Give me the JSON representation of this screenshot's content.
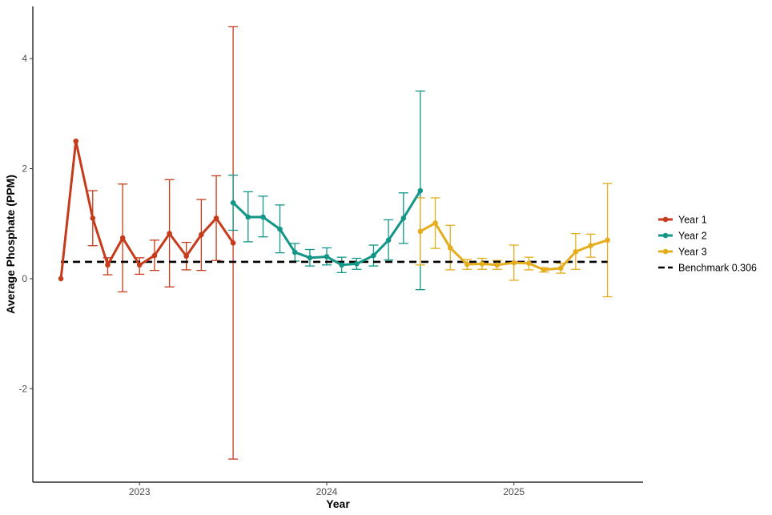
{
  "chart_data": {
    "type": "line",
    "title": "",
    "xlabel": "Year",
    "ylabel": "Average Phosphate (PPM)",
    "ylim": [
      -3.7,
      4.95
    ],
    "xlim": [
      2022.43,
      2025.69
    ],
    "x_ticks": [
      {
        "value": 2023.0,
        "label": "2023"
      },
      {
        "value": 2024.0,
        "label": "2024"
      },
      {
        "value": 2025.0,
        "label": "2025"
      }
    ],
    "y_ticks": [
      {
        "value": -2,
        "label": "-2"
      },
      {
        "value": 0,
        "label": "0"
      },
      {
        "value": 2,
        "label": "2"
      },
      {
        "value": 4,
        "label": "4"
      }
    ],
    "grid": false,
    "legend_position": "right",
    "series": [
      {
        "name": "Year 1",
        "color": "#c63b1c",
        "points": [
          {
            "x": 2022.58,
            "y": 0.0
          },
          {
            "x": 2022.66,
            "y": 2.5
          },
          {
            "x": 2022.75,
            "y": 1.1,
            "lo": 0.6,
            "hi": 1.6
          },
          {
            "x": 2022.83,
            "y": 0.25,
            "lo": 0.07,
            "hi": 0.38
          },
          {
            "x": 2022.91,
            "y": 0.74,
            "lo": -0.24,
            "hi": 1.72
          },
          {
            "x": 2023.0,
            "y": 0.25,
            "lo": 0.08,
            "hi": 0.38
          },
          {
            "x": 2023.08,
            "y": 0.42,
            "lo": 0.15,
            "hi": 0.7
          },
          {
            "x": 2023.16,
            "y": 0.82,
            "lo": -0.15,
            "hi": 1.8
          },
          {
            "x": 2023.25,
            "y": 0.41,
            "lo": 0.16,
            "hi": 0.66
          },
          {
            "x": 2023.33,
            "y": 0.8,
            "lo": 0.15,
            "hi": 1.44
          },
          {
            "x": 2023.41,
            "y": 1.1,
            "lo": 0.33,
            "hi": 1.87
          },
          {
            "x": 2023.5,
            "y": 0.65,
            "lo": -3.28,
            "hi": 4.58
          }
        ]
      },
      {
        "name": "Year 2",
        "color": "#139687",
        "points": [
          {
            "x": 2023.5,
            "y": 1.38,
            "lo": 0.88,
            "hi": 1.88
          },
          {
            "x": 2023.58,
            "y": 1.12,
            "lo": 0.67,
            "hi": 1.58
          },
          {
            "x": 2023.66,
            "y": 1.12,
            "lo": 0.76,
            "hi": 1.5
          },
          {
            "x": 2023.75,
            "y": 0.9,
            "lo": 0.47,
            "hi": 1.34
          },
          {
            "x": 2023.83,
            "y": 0.48,
            "lo": 0.32,
            "hi": 0.64
          },
          {
            "x": 2023.91,
            "y": 0.38,
            "lo": 0.23,
            "hi": 0.53
          },
          {
            "x": 2024.0,
            "y": 0.4,
            "lo": 0.25,
            "hi": 0.56
          },
          {
            "x": 2024.08,
            "y": 0.25,
            "lo": 0.11,
            "hi": 0.39
          },
          {
            "x": 2024.16,
            "y": 0.27,
            "lo": 0.17,
            "hi": 0.37
          },
          {
            "x": 2024.25,
            "y": 0.42,
            "lo": 0.23,
            "hi": 0.61
          },
          {
            "x": 2024.33,
            "y": 0.7,
            "lo": 0.34,
            "hi": 1.07
          },
          {
            "x": 2024.41,
            "y": 1.1,
            "lo": 0.64,
            "hi": 1.56
          },
          {
            "x": 2024.5,
            "y": 1.6,
            "lo": -0.2,
            "hi": 3.41
          }
        ]
      },
      {
        "name": "Year 3",
        "color": "#e5ad1e",
        "points": [
          {
            "x": 2024.5,
            "y": 0.86,
            "lo": 0.25,
            "hi": 1.47
          },
          {
            "x": 2024.58,
            "y": 1.01,
            "lo": 0.55,
            "hi": 1.47
          },
          {
            "x": 2024.66,
            "y": 0.56,
            "lo": 0.16,
            "hi": 0.97
          },
          {
            "x": 2024.75,
            "y": 0.26,
            "lo": 0.17,
            "hi": 0.35
          },
          {
            "x": 2024.83,
            "y": 0.27,
            "lo": 0.17,
            "hi": 0.37
          },
          {
            "x": 2024.91,
            "y": 0.25,
            "lo": 0.17,
            "hi": 0.33
          },
          {
            "x": 2025.0,
            "y": 0.29,
            "lo": -0.03,
            "hi": 0.61
          },
          {
            "x": 2025.08,
            "y": 0.28,
            "lo": 0.16,
            "hi": 0.39
          },
          {
            "x": 2025.16,
            "y": 0.16,
            "lo": 0.12,
            "hi": 0.2
          },
          {
            "x": 2025.25,
            "y": 0.19,
            "lo": 0.1,
            "hi": 0.28
          },
          {
            "x": 2025.33,
            "y": 0.49,
            "lo": 0.17,
            "hi": 0.82
          },
          {
            "x": 2025.41,
            "y": 0.6,
            "lo": 0.39,
            "hi": 0.81
          },
          {
            "x": 2025.5,
            "y": 0.7,
            "lo": -0.33,
            "hi": 1.73
          }
        ]
      }
    ],
    "benchmark": {
      "name": "Benchmark 0.306",
      "value": 0.306,
      "color": "#000000",
      "x_range": [
        2022.58,
        2025.5
      ]
    }
  }
}
